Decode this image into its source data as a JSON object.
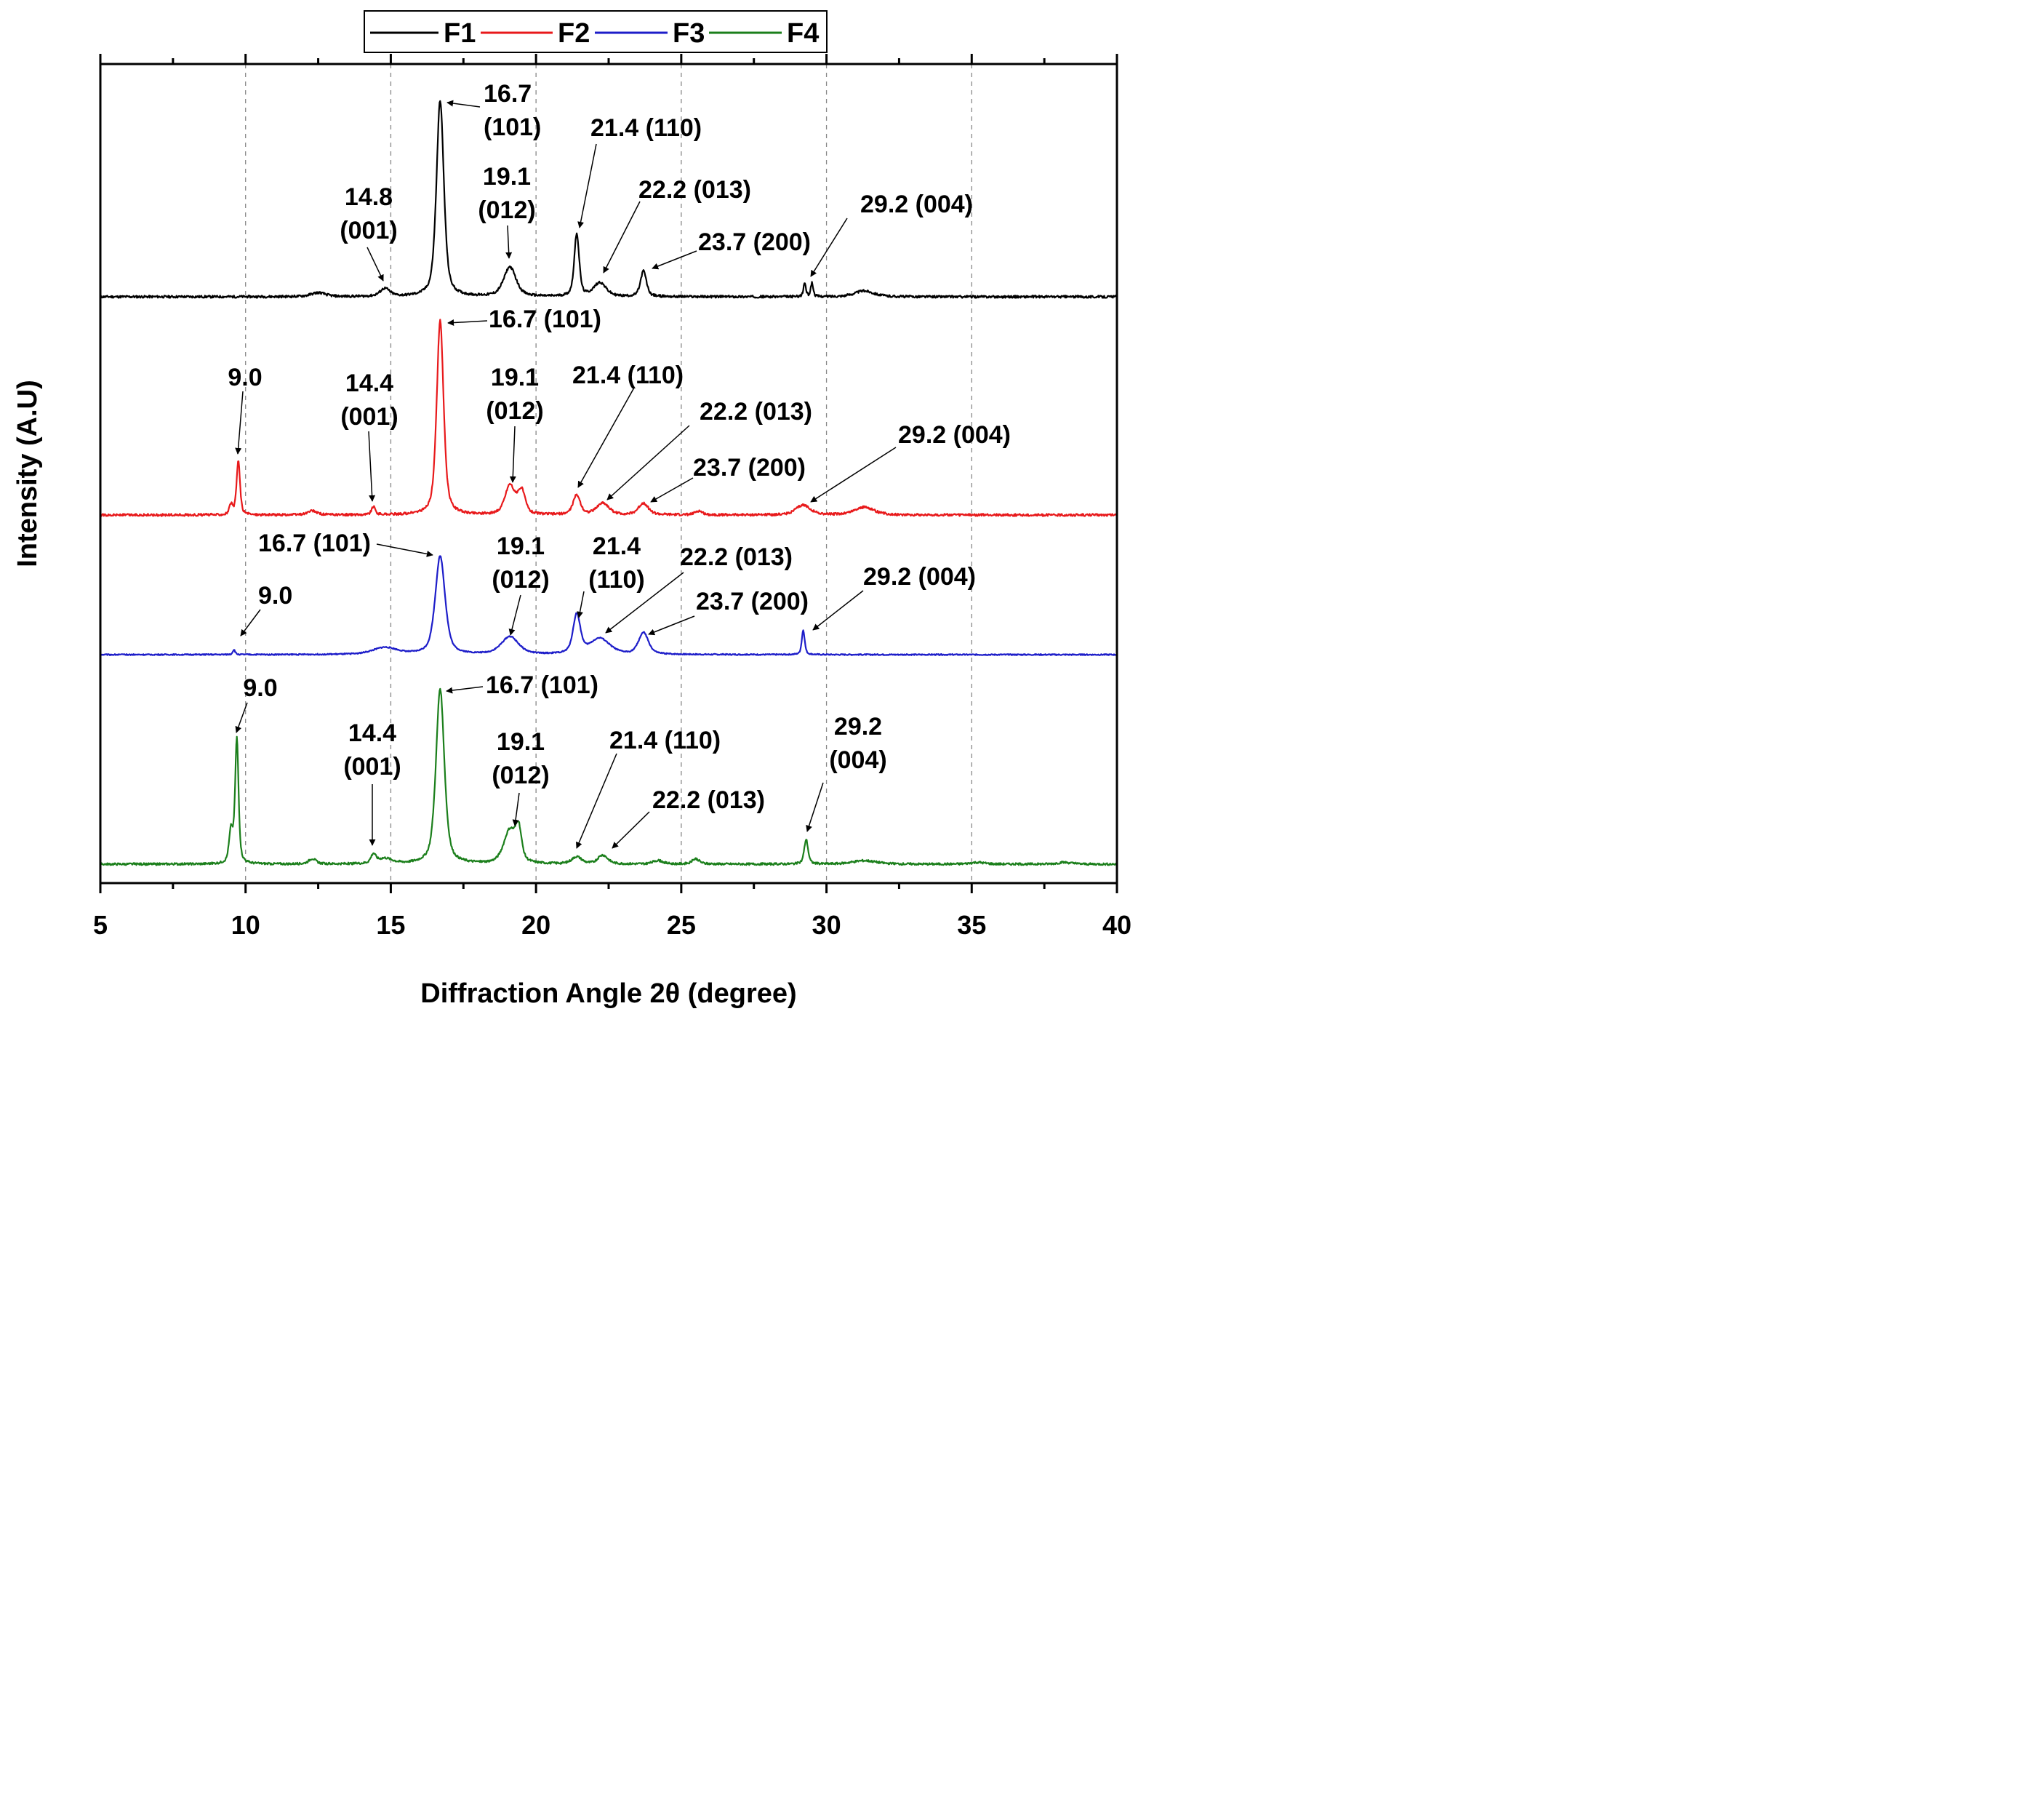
{
  "chart_data": {
    "type": "line",
    "title": "",
    "xlabel": "Diffraction Angle 2θ (degree)",
    "ylabel": "Intensity (A.U)",
    "xlim": [
      5,
      40
    ],
    "xticks": [
      5,
      10,
      15,
      20,
      25,
      30,
      35,
      40
    ],
    "xtick_labels": [
      "5",
      "10",
      "15",
      "20",
      "25",
      "30",
      "35",
      "40"
    ],
    "grid": "vertical dashed at major ticks",
    "legend": {
      "placement": "top-center",
      "entries": [
        "F1",
        "F2",
        "F3",
        "F4"
      ]
    },
    "series": [
      {
        "name": "F1",
        "color": "#000000",
        "peaks": [
          {
            "x": 12.5,
            "h": 0.02,
            "w": 0.3
          },
          {
            "x": 14.8,
            "h": 0.04,
            "w": 0.2
          },
          {
            "x": 16.7,
            "h": 1.0,
            "w": 0.15
          },
          {
            "x": 19.1,
            "h": 0.15,
            "w": 0.25
          },
          {
            "x": 21.4,
            "h": 0.32,
            "w": 0.1
          },
          {
            "x": 22.2,
            "h": 0.07,
            "w": 0.25
          },
          {
            "x": 23.7,
            "h": 0.13,
            "w": 0.12
          },
          {
            "x": 29.25,
            "h": 0.07,
            "w": 0.05
          },
          {
            "x": 29.5,
            "h": 0.07,
            "w": 0.05
          },
          {
            "x": 31.3,
            "h": 0.03,
            "w": 0.4
          }
        ]
      },
      {
        "name": "F2",
        "color": "#e8191b",
        "peaks": [
          {
            "x": 9.5,
            "h": 0.05,
            "w": 0.07
          },
          {
            "x": 9.75,
            "h": 0.28,
            "w": 0.07
          },
          {
            "x": 12.3,
            "h": 0.02,
            "w": 0.2
          },
          {
            "x": 14.4,
            "h": 0.04,
            "w": 0.08
          },
          {
            "x": 16.7,
            "h": 1.0,
            "w": 0.14
          },
          {
            "x": 19.1,
            "h": 0.15,
            "w": 0.2
          },
          {
            "x": 19.5,
            "h": 0.12,
            "w": 0.15
          },
          {
            "x": 21.4,
            "h": 0.1,
            "w": 0.15
          },
          {
            "x": 22.3,
            "h": 0.06,
            "w": 0.25
          },
          {
            "x": 23.7,
            "h": 0.06,
            "w": 0.2
          },
          {
            "x": 25.6,
            "h": 0.02,
            "w": 0.15
          },
          {
            "x": 29.2,
            "h": 0.05,
            "w": 0.3
          },
          {
            "x": 31.3,
            "h": 0.04,
            "w": 0.4
          }
        ]
      },
      {
        "name": "F3",
        "color": "#1d1dc9",
        "peaks": [
          {
            "x": 9.6,
            "h": 0.05,
            "w": 0.05
          },
          {
            "x": 14.8,
            "h": 0.07,
            "w": 0.5
          },
          {
            "x": 16.7,
            "h": 1.0,
            "w": 0.2
          },
          {
            "x": 19.1,
            "h": 0.18,
            "w": 0.35
          },
          {
            "x": 21.4,
            "h": 0.4,
            "w": 0.15
          },
          {
            "x": 22.2,
            "h": 0.16,
            "w": 0.4
          },
          {
            "x": 23.7,
            "h": 0.22,
            "w": 0.2
          },
          {
            "x": 29.2,
            "h": 0.25,
            "w": 0.06
          }
        ]
      },
      {
        "name": "F4",
        "color": "#1b7f1b",
        "peaks": [
          {
            "x": 9.5,
            "h": 0.18,
            "w": 0.08
          },
          {
            "x": 9.7,
            "h": 0.71,
            "w": 0.07
          },
          {
            "x": 12.3,
            "h": 0.03,
            "w": 0.15
          },
          {
            "x": 14.4,
            "h": 0.05,
            "w": 0.1
          },
          {
            "x": 14.8,
            "h": 0.03,
            "w": 0.3
          },
          {
            "x": 16.7,
            "h": 1.0,
            "w": 0.17
          },
          {
            "x": 19.1,
            "h": 0.19,
            "w": 0.25
          },
          {
            "x": 19.4,
            "h": 0.17,
            "w": 0.12
          },
          {
            "x": 21.4,
            "h": 0.04,
            "w": 0.2
          },
          {
            "x": 22.3,
            "h": 0.05,
            "w": 0.2
          },
          {
            "x": 24.2,
            "h": 0.02,
            "w": 0.2
          },
          {
            "x": 25.5,
            "h": 0.03,
            "w": 0.15
          },
          {
            "x": 29.3,
            "h": 0.14,
            "w": 0.08
          },
          {
            "x": 31.3,
            "h": 0.02,
            "w": 0.5
          },
          {
            "x": 35.2,
            "h": 0.01,
            "w": 0.3
          },
          {
            "x": 38.2,
            "h": 0.01,
            "w": 0.3
          }
        ]
      }
    ],
    "annotations": [
      {
        "series": "F1",
        "lines": [
          "16.7",
          "(101)"
        ],
        "peak_x": 16.7
      },
      {
        "series": "F1",
        "lines": [
          "21.4 (110)"
        ],
        "peak_x": 21.4
      },
      {
        "series": "F1",
        "lines": [
          "19.1",
          "(012)"
        ],
        "peak_x": 19.1
      },
      {
        "series": "F1",
        "lines": [
          "14.8",
          "(001)"
        ],
        "peak_x": 14.8
      },
      {
        "series": "F1",
        "lines": [
          "22.2 (013)"
        ],
        "peak_x": 22.2
      },
      {
        "series": "F1",
        "lines": [
          "29.2 (004)"
        ],
        "peak_x": 29.2
      },
      {
        "series": "F1",
        "lines": [
          "23.7 (200)"
        ],
        "peak_x": 23.7
      },
      {
        "series": "F2",
        "lines": [
          "16.7 (101)"
        ],
        "peak_x": 16.7
      },
      {
        "series": "F2",
        "lines": [
          "9.0"
        ],
        "peak_x": 9.75
      },
      {
        "series": "F2",
        "lines": [
          "14.4",
          "(001)"
        ],
        "peak_x": 14.4
      },
      {
        "series": "F2",
        "lines": [
          "19.1",
          "(012)"
        ],
        "peak_x": 19.1
      },
      {
        "series": "F2",
        "lines": [
          "21.4 (110)"
        ],
        "peak_x": 21.4
      },
      {
        "series": "F2",
        "lines": [
          "22.2 (013)"
        ],
        "peak_x": 22.2
      },
      {
        "series": "F2",
        "lines": [
          "29.2 (004)"
        ],
        "peak_x": 29.2
      },
      {
        "series": "F2",
        "lines": [
          "23.7 (200)"
        ],
        "peak_x": 23.7
      },
      {
        "series": "F3",
        "lines": [
          "16.7 (101)"
        ],
        "peak_x": 16.7
      },
      {
        "series": "F3",
        "lines": [
          "9.0"
        ],
        "peak_x": 9.6
      },
      {
        "series": "F3",
        "lines": [
          "19.1",
          "(012)"
        ],
        "peak_x": 19.1
      },
      {
        "series": "F3",
        "lines": [
          "21.4",
          "(110)"
        ],
        "peak_x": 21.4
      },
      {
        "series": "F3",
        "lines": [
          "22.2 (013)"
        ],
        "peak_x": 22.2
      },
      {
        "series": "F3",
        "lines": [
          "23.7 (200)"
        ],
        "peak_x": 23.7
      },
      {
        "series": "F3",
        "lines": [
          "29.2 (004)"
        ],
        "peak_x": 29.2
      },
      {
        "series": "F4",
        "lines": [
          "9.0"
        ],
        "peak_x": 9.7
      },
      {
        "series": "F4",
        "lines": [
          "16.7 (101)"
        ],
        "peak_x": 16.7
      },
      {
        "series": "F4",
        "lines": [
          "14.4",
          "(001)"
        ],
        "peak_x": 14.4
      },
      {
        "series": "F4",
        "lines": [
          "19.1",
          "(012)"
        ],
        "peak_x": 19.1
      },
      {
        "series": "F4",
        "lines": [
          "21.4 (110)"
        ],
        "peak_x": 21.4
      },
      {
        "series": "F4",
        "lines": [
          "29.2",
          "(004)"
        ],
        "peak_x": 29.3
      },
      {
        "series": "F4",
        "lines": [
          "22.2 (013)"
        ],
        "peak_x": 22.2
      }
    ]
  }
}
